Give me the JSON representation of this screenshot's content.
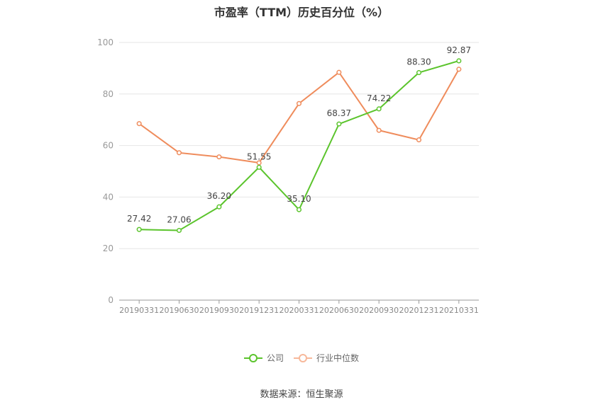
{
  "chart_data": {
    "type": "line",
    "title": "市盈率（TTM）历史百分位（%）",
    "categories": [
      "20190331",
      "20190630",
      "20190930",
      "20191231",
      "20200331",
      "20200630",
      "20200930",
      "20201231",
      "20210331"
    ],
    "series": [
      {
        "name": "公司",
        "values": [
          27.42,
          27.06,
          36.2,
          51.55,
          35.1,
          68.37,
          74.22,
          88.3,
          92.87
        ],
        "labels": [
          "27.42",
          "27.06",
          "36.20",
          "51.55",
          "35.10",
          "68.37",
          "74.22",
          "88.30",
          "92.87"
        ],
        "color": "#5bc42c"
      },
      {
        "name": "行业中位数",
        "values": [
          68.5,
          57.2,
          55.6,
          53.3,
          76.3,
          88.4,
          65.9,
          62.2,
          89.6
        ],
        "color": "#ef8c5c"
      }
    ],
    "yticks": [
      "0",
      "20",
      "40",
      "60",
      "80",
      "100"
    ],
    "ylim": [
      0,
      100
    ],
    "grid": true,
    "legend_position": "bottom-center"
  },
  "source": "数据来源：恒生聚源"
}
